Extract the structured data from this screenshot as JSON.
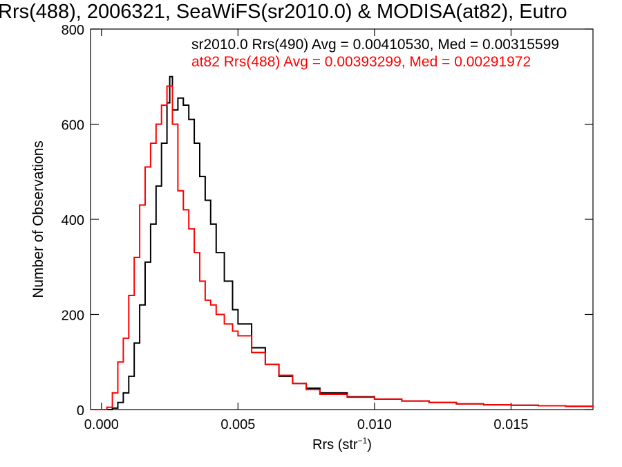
{
  "chart_data": {
    "type": "line",
    "title": "Rrs(488), 2006321, SeaWiFS(sr2010.0) & MODISA(at82), Eutro",
    "xlabel_base": "Rrs (str",
    "xlabel_sup": "−1",
    "xlabel_close": ")",
    "ylabel": "Number of Observations",
    "xlim": [
      -0.0004,
      0.018
    ],
    "ylim": [
      0,
      800
    ],
    "x_ticks": [
      0.0,
      0.005,
      0.01,
      0.015
    ],
    "x_tick_labels": [
      "0.000",
      "0.005",
      "0.010",
      "0.015"
    ],
    "y_ticks": [
      0,
      200,
      400,
      600,
      800
    ],
    "y_tick_labels": [
      "0",
      "200",
      "400",
      "600",
      "800"
    ],
    "step_style": "histogram",
    "series": [
      {
        "name": "sr2010.0 Rrs(490)",
        "legend_text": "sr2010.0 Rrs(490) Avg = 0.00410530, Med = 0.00315599",
        "color": "#000000",
        "points": [
          [
            -0.0004,
            0
          ],
          [
            0.0002,
            0
          ],
          [
            0.0004,
            3
          ],
          [
            0.0006,
            15
          ],
          [
            0.0008,
            35
          ],
          [
            0.001,
            70
          ],
          [
            0.0012,
            140
          ],
          [
            0.0014,
            220
          ],
          [
            0.0016,
            310
          ],
          [
            0.0018,
            390
          ],
          [
            0.002,
            470
          ],
          [
            0.0022,
            560
          ],
          [
            0.0024,
            645
          ],
          [
            0.0025,
            700
          ],
          [
            0.0026,
            630
          ],
          [
            0.0028,
            655
          ],
          [
            0.003,
            640
          ],
          [
            0.0032,
            610
          ],
          [
            0.0034,
            560
          ],
          [
            0.0036,
            490
          ],
          [
            0.0038,
            440
          ],
          [
            0.004,
            390
          ],
          [
            0.0042,
            330
          ],
          [
            0.0045,
            270
          ],
          [
            0.0048,
            210
          ],
          [
            0.005,
            180
          ],
          [
            0.0055,
            130
          ],
          [
            0.006,
            95
          ],
          [
            0.0065,
            70
          ],
          [
            0.007,
            55
          ],
          [
            0.0075,
            45
          ],
          [
            0.008,
            35
          ],
          [
            0.009,
            27
          ],
          [
            0.01,
            22
          ],
          [
            0.011,
            18
          ],
          [
            0.012,
            15
          ],
          [
            0.013,
            12
          ],
          [
            0.014,
            10
          ],
          [
            0.015,
            9
          ],
          [
            0.016,
            8
          ],
          [
            0.017,
            7
          ],
          [
            0.018,
            6
          ]
        ]
      },
      {
        "name": "at82 Rrs(488)",
        "legend_text": "at82 Rrs(488) Avg = 0.00393299, Med = 0.00291972",
        "color": "#ff0000",
        "points": [
          [
            -0.0004,
            0
          ],
          [
            0.0,
            0
          ],
          [
            0.0002,
            5
          ],
          [
            0.0004,
            35
          ],
          [
            0.0006,
            100
          ],
          [
            0.0008,
            150
          ],
          [
            0.001,
            240
          ],
          [
            0.0012,
            320
          ],
          [
            0.0014,
            430
          ],
          [
            0.0016,
            510
          ],
          [
            0.0018,
            560
          ],
          [
            0.002,
            600
          ],
          [
            0.0022,
            640
          ],
          [
            0.0024,
            680
          ],
          [
            0.0026,
            600
          ],
          [
            0.0028,
            460
          ],
          [
            0.003,
            420
          ],
          [
            0.0032,
            380
          ],
          [
            0.0034,
            330
          ],
          [
            0.0036,
            270
          ],
          [
            0.0038,
            230
          ],
          [
            0.004,
            220
          ],
          [
            0.0042,
            200
          ],
          [
            0.0045,
            180
          ],
          [
            0.0048,
            165
          ],
          [
            0.005,
            155
          ],
          [
            0.0055,
            120
          ],
          [
            0.006,
            95
          ],
          [
            0.0065,
            72
          ],
          [
            0.007,
            55
          ],
          [
            0.0075,
            42
          ],
          [
            0.008,
            32
          ],
          [
            0.009,
            26
          ],
          [
            0.01,
            22
          ],
          [
            0.011,
            18
          ],
          [
            0.012,
            15
          ],
          [
            0.013,
            12
          ],
          [
            0.014,
            10
          ],
          [
            0.015,
            9
          ],
          [
            0.016,
            8
          ],
          [
            0.017,
            7
          ],
          [
            0.018,
            6
          ]
        ]
      }
    ]
  }
}
